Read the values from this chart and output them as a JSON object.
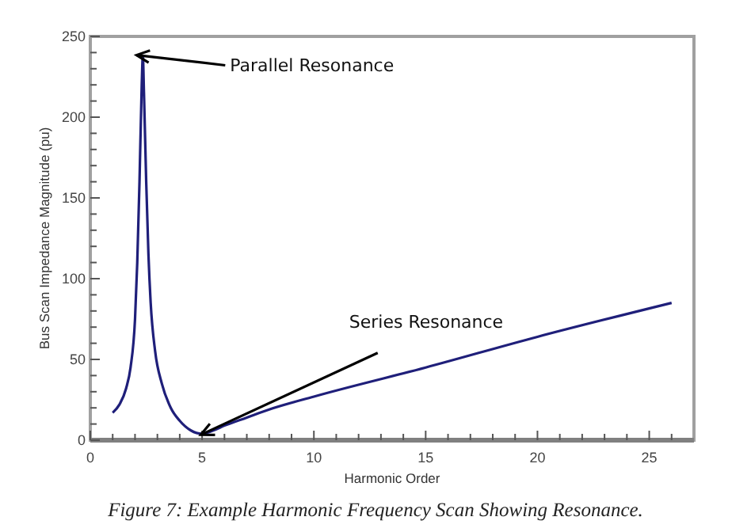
{
  "chart_data": {
    "type": "line",
    "xlabel": "Harmonic Order",
    "ylabel": "Bus Scan Impedance Magnitude (pu)",
    "x": [
      1,
      1.3,
      1.6,
      1.8,
      2.0,
      2.1,
      2.2,
      2.3,
      2.35,
      2.4,
      2.5,
      2.6,
      2.7,
      2.9,
      3.2,
      3.6,
      4.0,
      4.5,
      5.0,
      5.5,
      6,
      7,
      8,
      10,
      15,
      20,
      26
    ],
    "series": [
      {
        "color": "#1f1f7a",
        "values": [
          17,
          22,
          32,
          45,
          75,
          110,
          160,
          220,
          238,
          215,
          160,
          115,
          85,
          55,
          35,
          20,
          12,
          6,
          4,
          6,
          9,
          14,
          19,
          27,
          45,
          64,
          85
        ]
      }
    ],
    "xlim": [
      0,
      27
    ],
    "ylim": [
      0,
      250
    ],
    "xticks": [
      0,
      {
        "value": 1,
        "label": null
      },
      {
        "value": 2,
        "label": null
      },
      {
        "value": 3,
        "label": null
      },
      {
        "value": 4,
        "label": null
      },
      5,
      {
        "value": 6,
        "label": null
      },
      {
        "value": 7,
        "label": null
      },
      {
        "value": 8,
        "label": null
      },
      {
        "value": 9,
        "label": null
      },
      10,
      {
        "value": 11,
        "label": null
      },
      {
        "value": 12,
        "label": null
      },
      {
        "value": 13,
        "label": null
      },
      {
        "value": 14,
        "label": null
      },
      15,
      {
        "value": 16,
        "label": null
      },
      {
        "value": 17,
        "label": null
      },
      {
        "value": 18,
        "label": null
      },
      {
        "value": 19,
        "label": null
      },
      20,
      {
        "value": 21,
        "label": null
      },
      {
        "value": 22,
        "label": null
      },
      {
        "value": 23,
        "label": null
      },
      {
        "value": 24,
        "label": null
      },
      25,
      {
        "value": 26,
        "label": null
      }
    ],
    "yticks": [
      0,
      {
        "value": 10,
        "label": null
      },
      {
        "value": 20,
        "label": null
      },
      {
        "value": 30,
        "label": null
      },
      {
        "value": 40,
        "label": null
      },
      50,
      {
        "value": 60,
        "label": null
      },
      {
        "value": 70,
        "label": null
      },
      {
        "value": 80,
        "label": null
      },
      {
        "value": 90,
        "label": null
      },
      100,
      {
        "value": 110,
        "label": null
      },
      {
        "value": 120,
        "label": null
      },
      {
        "value": 130,
        "label": null
      },
      {
        "value": 140,
        "label": null
      },
      150,
      {
        "value": 160,
        "label": null
      },
      {
        "value": 170,
        "label": null
      },
      {
        "value": 180,
        "label": null
      },
      {
        "value": 190,
        "label": null
      },
      200,
      {
        "value": 210,
        "label": null
      },
      {
        "value": 220,
        "label": null
      },
      {
        "value": 230,
        "label": null
      },
      {
        "value": 240,
        "label": null
      },
      250
    ],
    "annotations": [
      {
        "text": "Parallel Resonance",
        "x": 2.35,
        "y": 238
      },
      {
        "text": "Series Resonance",
        "x": 5.2,
        "y": 5
      },
      "Figure 7: Example Harmonic Frequency Scan Showing Resonance."
    ]
  }
}
